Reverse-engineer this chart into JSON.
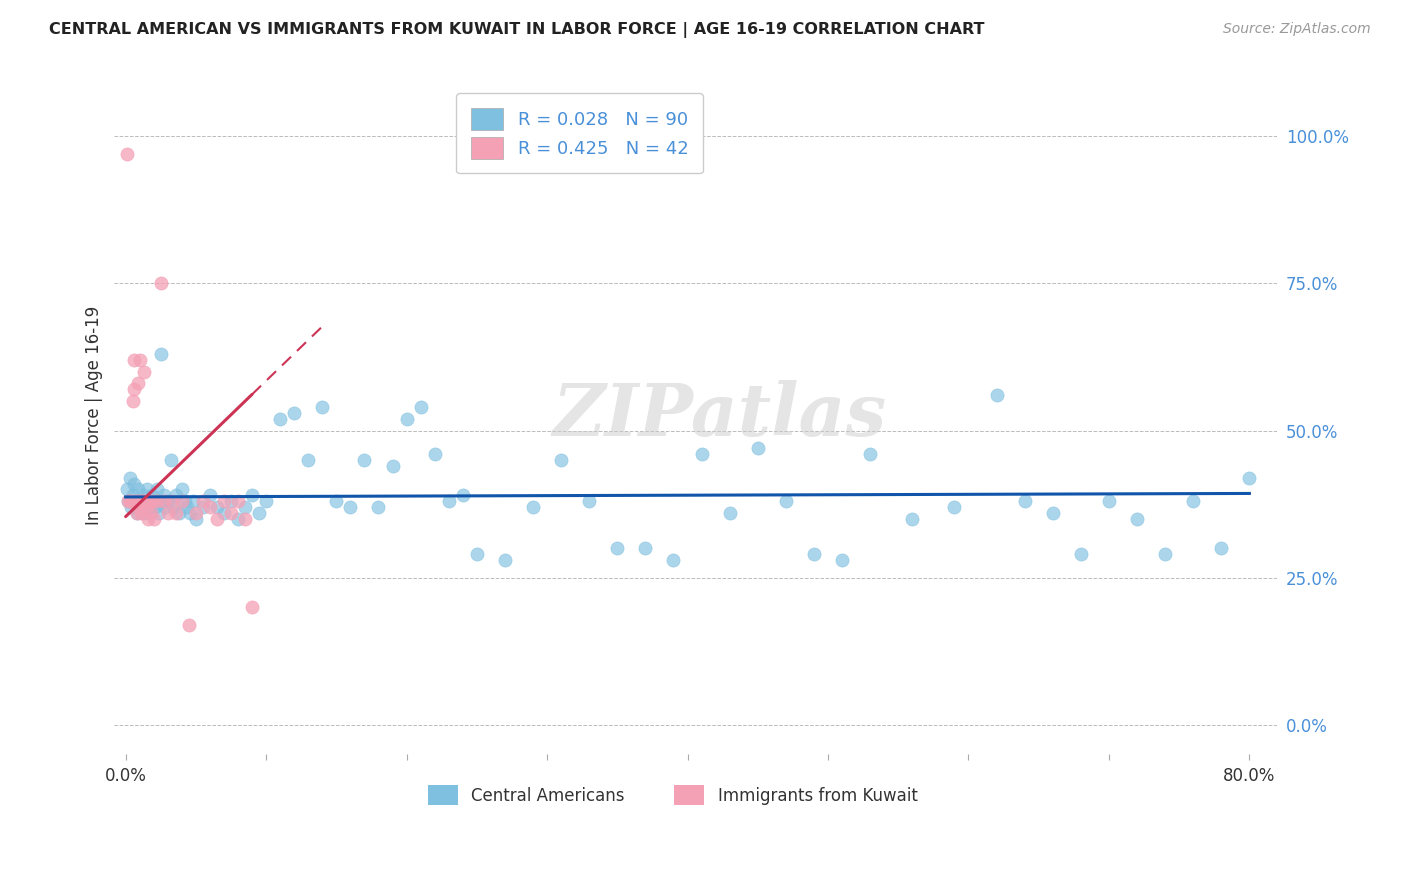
{
  "title": "CENTRAL AMERICAN VS IMMIGRANTS FROM KUWAIT IN LABOR FORCE | AGE 16-19 CORRELATION CHART",
  "source": "Source: ZipAtlas.com",
  "ylabel": "In Labor Force | Age 16-19",
  "right_ytick_labels": [
    "0.0%",
    "25.0%",
    "50.0%",
    "75.0%",
    "100.0%"
  ],
  "right_ytick_values": [
    0.0,
    0.25,
    0.5,
    0.75,
    1.0
  ],
  "xlim": [
    -0.008,
    0.82
  ],
  "ylim": [
    -0.05,
    1.1
  ],
  "blue_R": 0.028,
  "blue_N": 90,
  "pink_R": 0.425,
  "pink_N": 42,
  "blue_color": "#7fbfdf",
  "pink_color": "#f4a0b5",
  "blue_line_color": "#1055aa",
  "pink_line_color": "#cc3355",
  "blue_scatter_x": [
    0.001,
    0.002,
    0.003,
    0.004,
    0.005,
    0.006,
    0.007,
    0.008,
    0.009,
    0.01,
    0.011,
    0.012,
    0.013,
    0.014,
    0.015,
    0.016,
    0.017,
    0.018,
    0.019,
    0.02,
    0.021,
    0.022,
    0.023,
    0.024,
    0.025,
    0.026,
    0.027,
    0.028,
    0.03,
    0.032,
    0.034,
    0.036,
    0.038,
    0.04,
    0.042,
    0.044,
    0.046,
    0.048,
    0.05,
    0.055,
    0.06,
    0.065,
    0.07,
    0.075,
    0.08,
    0.085,
    0.09,
    0.095,
    0.1,
    0.11,
    0.12,
    0.13,
    0.14,
    0.15,
    0.16,
    0.17,
    0.18,
    0.19,
    0.2,
    0.21,
    0.22,
    0.23,
    0.24,
    0.25,
    0.27,
    0.29,
    0.31,
    0.33,
    0.35,
    0.37,
    0.39,
    0.41,
    0.43,
    0.45,
    0.47,
    0.49,
    0.51,
    0.53,
    0.56,
    0.59,
    0.62,
    0.64,
    0.66,
    0.68,
    0.7,
    0.72,
    0.74,
    0.76,
    0.78,
    0.8
  ],
  "blue_scatter_y": [
    0.4,
    0.38,
    0.42,
    0.37,
    0.39,
    0.41,
    0.38,
    0.36,
    0.4,
    0.38,
    0.37,
    0.39,
    0.36,
    0.38,
    0.4,
    0.37,
    0.38,
    0.36,
    0.39,
    0.38,
    0.37,
    0.4,
    0.38,
    0.36,
    0.63,
    0.38,
    0.39,
    0.37,
    0.38,
    0.45,
    0.37,
    0.39,
    0.36,
    0.4,
    0.38,
    0.37,
    0.36,
    0.38,
    0.35,
    0.37,
    0.39,
    0.37,
    0.36,
    0.38,
    0.35,
    0.37,
    0.39,
    0.36,
    0.38,
    0.52,
    0.53,
    0.45,
    0.54,
    0.38,
    0.37,
    0.45,
    0.37,
    0.44,
    0.52,
    0.54,
    0.46,
    0.38,
    0.39,
    0.29,
    0.28,
    0.37,
    0.45,
    0.38,
    0.3,
    0.3,
    0.28,
    0.46,
    0.36,
    0.47,
    0.38,
    0.29,
    0.28,
    0.46,
    0.35,
    0.37,
    0.56,
    0.38,
    0.36,
    0.29,
    0.38,
    0.35,
    0.29,
    0.38,
    0.3,
    0.42
  ],
  "pink_scatter_x": [
    0.001,
    0.002,
    0.003,
    0.004,
    0.005,
    0.006,
    0.006,
    0.007,
    0.008,
    0.009,
    0.009,
    0.01,
    0.01,
    0.011,
    0.012,
    0.013,
    0.014,
    0.015,
    0.016,
    0.017,
    0.018,
    0.019,
    0.02,
    0.022,
    0.025,
    0.027,
    0.03,
    0.033,
    0.036,
    0.04,
    0.045,
    0.05,
    0.055,
    0.06,
    0.065,
    0.07,
    0.075,
    0.08,
    0.085,
    0.09,
    0.01,
    0.012
  ],
  "pink_scatter_y": [
    0.97,
    0.38,
    0.38,
    0.38,
    0.55,
    0.57,
    0.62,
    0.38,
    0.36,
    0.38,
    0.58,
    0.37,
    0.38,
    0.36,
    0.38,
    0.6,
    0.38,
    0.37,
    0.35,
    0.38,
    0.36,
    0.38,
    0.35,
    0.38,
    0.75,
    0.38,
    0.36,
    0.38,
    0.36,
    0.38,
    0.17,
    0.36,
    0.38,
    0.37,
    0.35,
    0.38,
    0.36,
    0.38,
    0.35,
    0.2,
    0.62,
    0.38
  ],
  "watermark": "ZIPatlas",
  "legend_blue_label": "Central Americans",
  "legend_pink_label": "Immigrants from Kuwait",
  "grid_color": "#bbbbbb",
  "background_color": "#ffffff"
}
